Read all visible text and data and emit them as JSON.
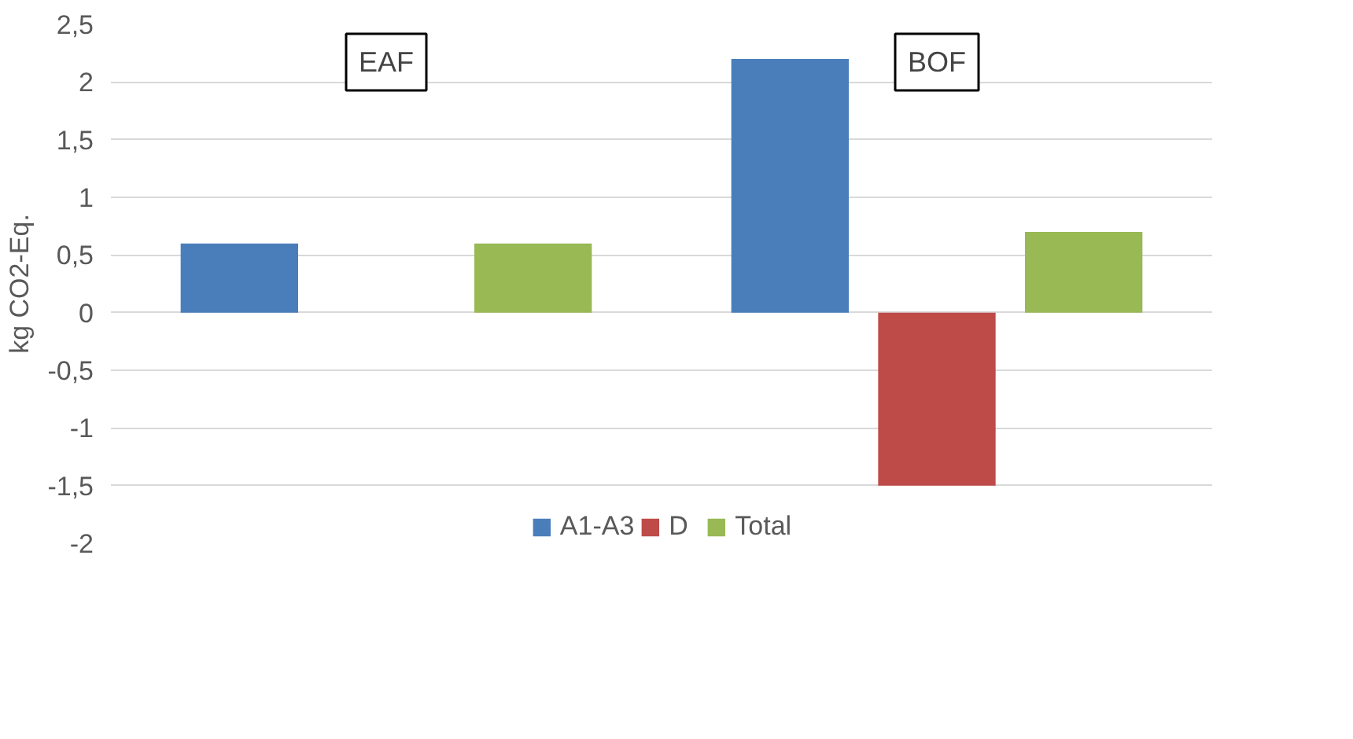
{
  "chart_data": {
    "type": "bar",
    "categories": [
      "EAF",
      "BOF"
    ],
    "series": [
      {
        "name": "A1-A3",
        "color": "#4a7ebb",
        "values": [
          0.6,
          2.2
        ]
      },
      {
        "name": "D",
        "color": "#be4b48",
        "values": [
          null,
          -1.5
        ]
      },
      {
        "name": "Total",
        "color": "#98b954",
        "values": [
          0.6,
          0.7
        ]
      }
    ],
    "ylabel": "kg CO2-Eq.",
    "ylim": [
      -2,
      2.5
    ],
    "yticks": [
      {
        "value": -2,
        "label": "-2"
      },
      {
        "value": -1.5,
        "label": "-1,5"
      },
      {
        "value": -1,
        "label": "-1"
      },
      {
        "value": -0.5,
        "label": "-0,5"
      },
      0,
      {
        "value": 0.5,
        "label": "0,5"
      },
      1,
      {
        "value": 1.5,
        "label": "1,5"
      },
      2,
      {
        "value": 2.5,
        "label": "2,5"
      }
    ],
    "grid": "y",
    "legend": "bottom",
    "tick_labels": "y"
  }
}
